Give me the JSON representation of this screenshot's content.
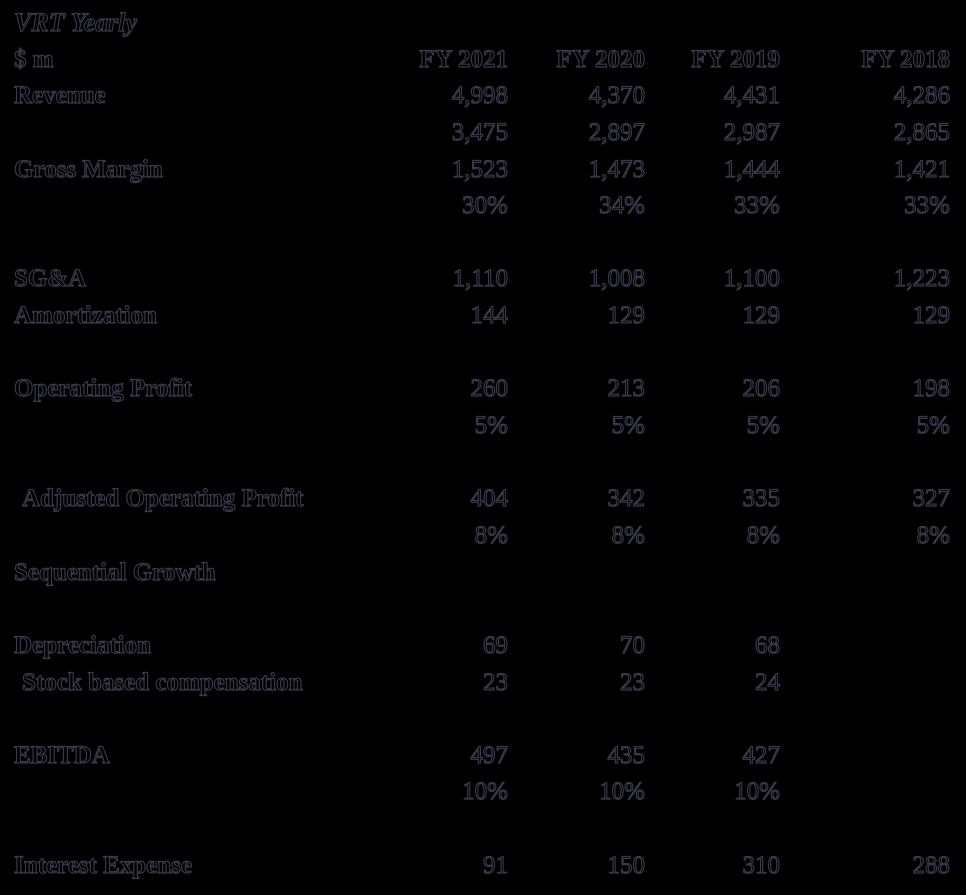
{
  "title": "VRT Yearly",
  "theme": {
    "background": "#000000",
    "text_fill": "#000000",
    "text_edge_antialias": "#31364a"
  },
  "table": {
    "unit_label": "$ m",
    "columns": [
      "FY 2021",
      "FY 2020",
      "FY 2019",
      "FY 2018"
    ],
    "rows": [
      {
        "label": "Revenue",
        "values": [
          "4,998",
          "4,370",
          "4,431",
          "4,286"
        ]
      },
      {
        "label": "",
        "values": [
          "3,475",
          "2,897",
          "2,987",
          "2,865"
        ]
      },
      {
        "label": "Gross Margin",
        "values": [
          "1,523",
          "1,473",
          "1,444",
          "1,421"
        ]
      },
      {
        "label": "",
        "values": [
          "30%",
          "34%",
          "33%",
          "33%"
        ]
      },
      {
        "label": "",
        "values": [
          "",
          "",
          "",
          ""
        ],
        "blank": true
      },
      {
        "label": "SG&A",
        "values": [
          "1,110",
          "1,008",
          "1,100",
          "1,223"
        ]
      },
      {
        "label": "Amortization",
        "values": [
          "144",
          "129",
          "129",
          "129"
        ]
      },
      {
        "label": "",
        "values": [
          "",
          "",
          "",
          ""
        ],
        "blank": true
      },
      {
        "label": "Operating Profit",
        "values": [
          "260",
          "213",
          "206",
          "198"
        ]
      },
      {
        "label": "",
        "values": [
          "5%",
          "5%",
          "5%",
          "5%"
        ]
      },
      {
        "label": "",
        "values": [
          "",
          "",
          "",
          ""
        ],
        "blank": true
      },
      {
        "label": "Adjusted Operating Profit",
        "indent": true,
        "values": [
          "404",
          "342",
          "335",
          "327"
        ]
      },
      {
        "label": "",
        "values": [
          "8%",
          "8%",
          "8%",
          "8%"
        ]
      },
      {
        "label": "Sequential Growth",
        "values": [
          "",
          "",
          "",
          ""
        ]
      },
      {
        "label": "",
        "values": [
          "",
          "",
          "",
          ""
        ],
        "blank": true
      },
      {
        "label": "Depreciation",
        "values": [
          "69",
          "70",
          "68",
          ""
        ]
      },
      {
        "label": "Stock based compensation",
        "indent": true,
        "values": [
          "23",
          "23",
          "24",
          ""
        ]
      },
      {
        "label": "",
        "values": [
          "",
          "",
          "",
          ""
        ],
        "blank": true
      },
      {
        "label": "EBITDA",
        "values": [
          "497",
          "435",
          "427",
          ""
        ]
      },
      {
        "label": "",
        "values": [
          "10%",
          "10%",
          "10%",
          ""
        ]
      },
      {
        "label": "",
        "values": [
          "",
          "",
          "",
          ""
        ],
        "blank": true
      },
      {
        "label": "Interest Expense",
        "values": [
          "91",
          "150",
          "310",
          "288"
        ]
      }
    ]
  }
}
